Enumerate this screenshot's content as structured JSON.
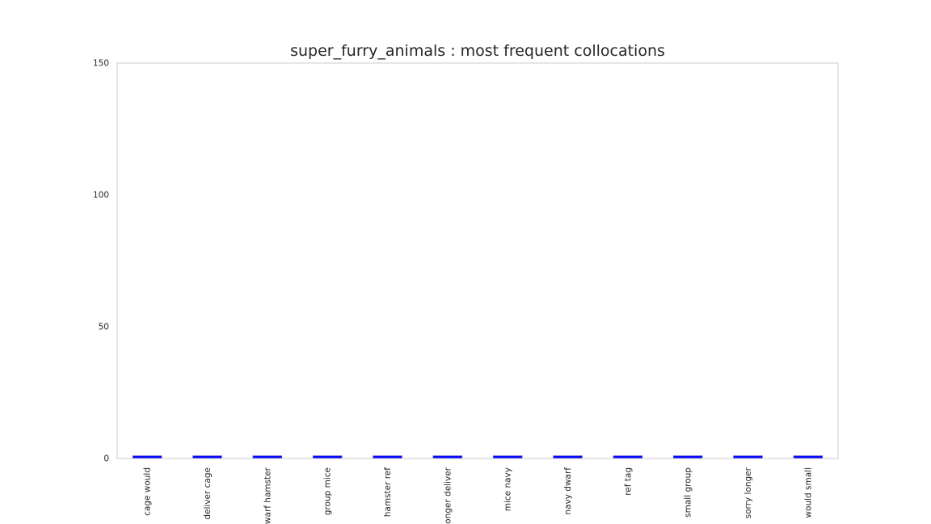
{
  "chart_data": {
    "type": "bar",
    "title": "super_furry_animals : most frequent collocations",
    "xlabel": "",
    "ylabel": "",
    "categories": [
      "cage would",
      "deliver cage",
      "dwarf hamster",
      "group mice",
      "hamster ref",
      "longer deliver",
      "mice navy",
      "navy dwarf",
      "ref tag",
      "small group",
      "sorry longer",
      "would small"
    ],
    "values": [
      1,
      1,
      1,
      1,
      1,
      1,
      1,
      1,
      1,
      1,
      1,
      1
    ],
    "ylim": [
      0,
      150
    ],
    "yticks": [
      0,
      50,
      100,
      150
    ],
    "grid": false,
    "bar_color": "#0000ff",
    "bar_edge_color": "#4b4bd6",
    "frame_color": "#cccccc"
  }
}
